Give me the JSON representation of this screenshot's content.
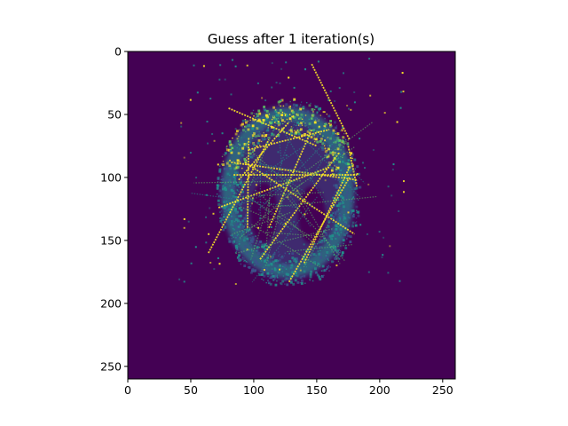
{
  "chart_data": {
    "type": "heatmap",
    "title": "Guess after 1 iteration(s)",
    "xlabel": "",
    "ylabel": "",
    "xlim": [
      0,
      260
    ],
    "ylim": [
      260,
      0
    ],
    "x_ticks": [
      0,
      50,
      100,
      150,
      200,
      250
    ],
    "y_ticks": [
      0,
      50,
      100,
      150,
      200,
      250
    ],
    "x_tick_labels": [
      "0",
      "50",
      "100",
      "150",
      "200",
      "250"
    ],
    "y_tick_labels": [
      "0",
      "50",
      "100",
      "150",
      "200",
      "250"
    ],
    "colormap": "viridis",
    "colors": {
      "background": "#440154",
      "low": "#3b528b",
      "mid": "#21918c",
      "high": "#5ec962",
      "max": "#fde725"
    },
    "grid": false,
    "legend": "none"
  }
}
